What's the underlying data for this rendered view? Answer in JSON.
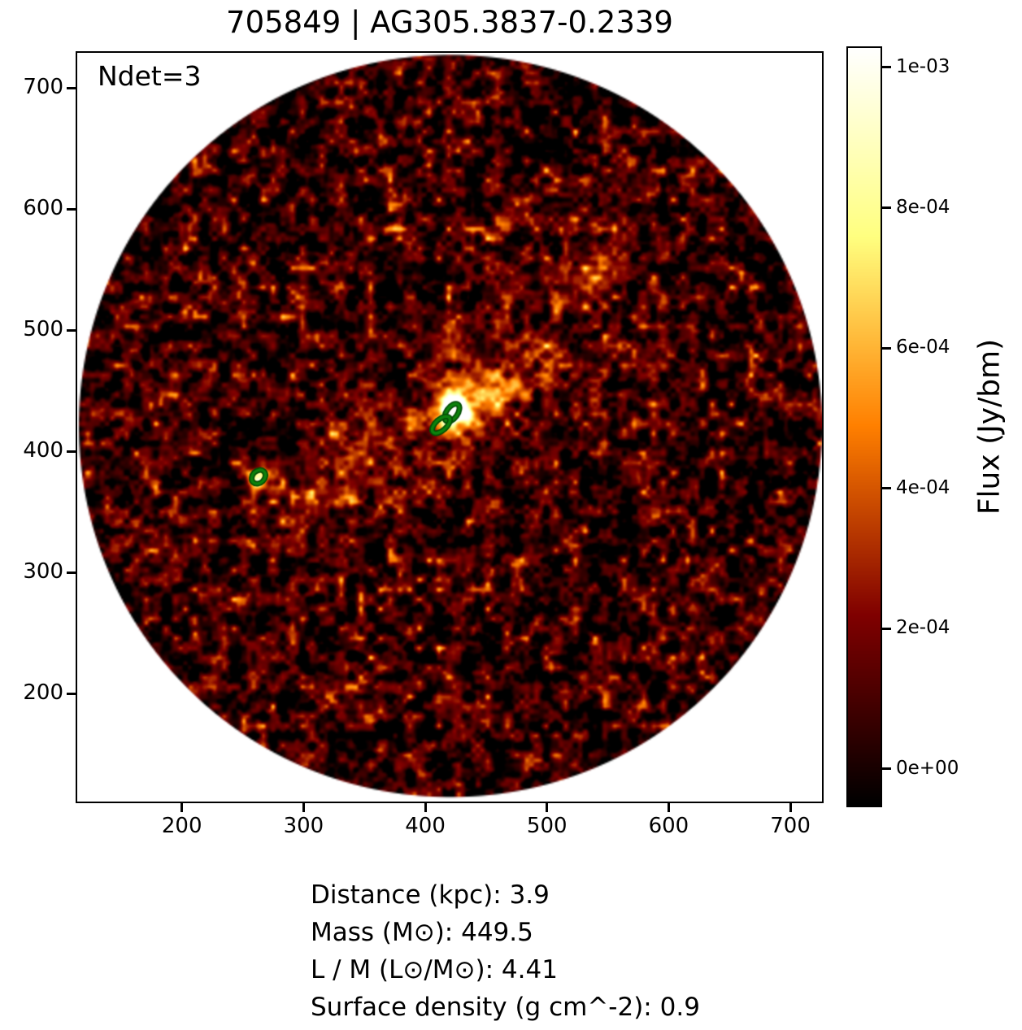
{
  "figure": {
    "title": "705849 | AG305.3837-0.2339",
    "annotation": "Ndet=3",
    "info_lines": [
      "Distance (kpc): 3.9",
      "Mass (M⊙): 449.5",
      "L / M (L⊙/M⊙): 4.41",
      "Surface density (g cm^-2): 0.9"
    ]
  },
  "chart_data": {
    "type": "heatmap",
    "title": "705849 | AG305.3837-0.2339",
    "annotation": "Ndet=3",
    "xlabel": "",
    "ylabel": "",
    "xlim": [
      114,
      726
    ],
    "ylim": [
      111,
      729
    ],
    "x_ticks": [
      200,
      300,
      400,
      500,
      600,
      700
    ],
    "y_ticks": [
      200,
      300,
      400,
      500,
      600,
      700
    ],
    "grid": false,
    "field_of_view": {
      "center_x": 420,
      "center_y": 420,
      "radius": 305,
      "outside_color": "#ffffff"
    },
    "colorbar": {
      "label": "Flux (Jy/bm)",
      "colormap": "afmhot",
      "vmin": -5.45e-05,
      "vmax": 0.00103,
      "ticks": [
        {
          "value": 0.001,
          "label": "1e-03"
        },
        {
          "value": 0.0008,
          "label": "8e-04"
        },
        {
          "value": 0.0006,
          "label": "6e-04"
        },
        {
          "value": 0.0004,
          "label": "4e-04"
        },
        {
          "value": 0.0002,
          "label": "2e-04"
        },
        {
          "value": 0.0,
          "label": "0e+00"
        }
      ]
    },
    "detections": [
      {
        "x": 422,
        "y": 432,
        "a": 8.3,
        "b": 4.6,
        "pa": 55
      },
      {
        "x": 413,
        "y": 422,
        "a": 9.0,
        "b": 4.6,
        "pa": 42
      },
      {
        "x": 263,
        "y": 379,
        "a": 6.3,
        "b": 5.0,
        "pa": 45
      }
    ],
    "contour_color": "#0c820c",
    "contour_edge_color": "#054d05"
  }
}
